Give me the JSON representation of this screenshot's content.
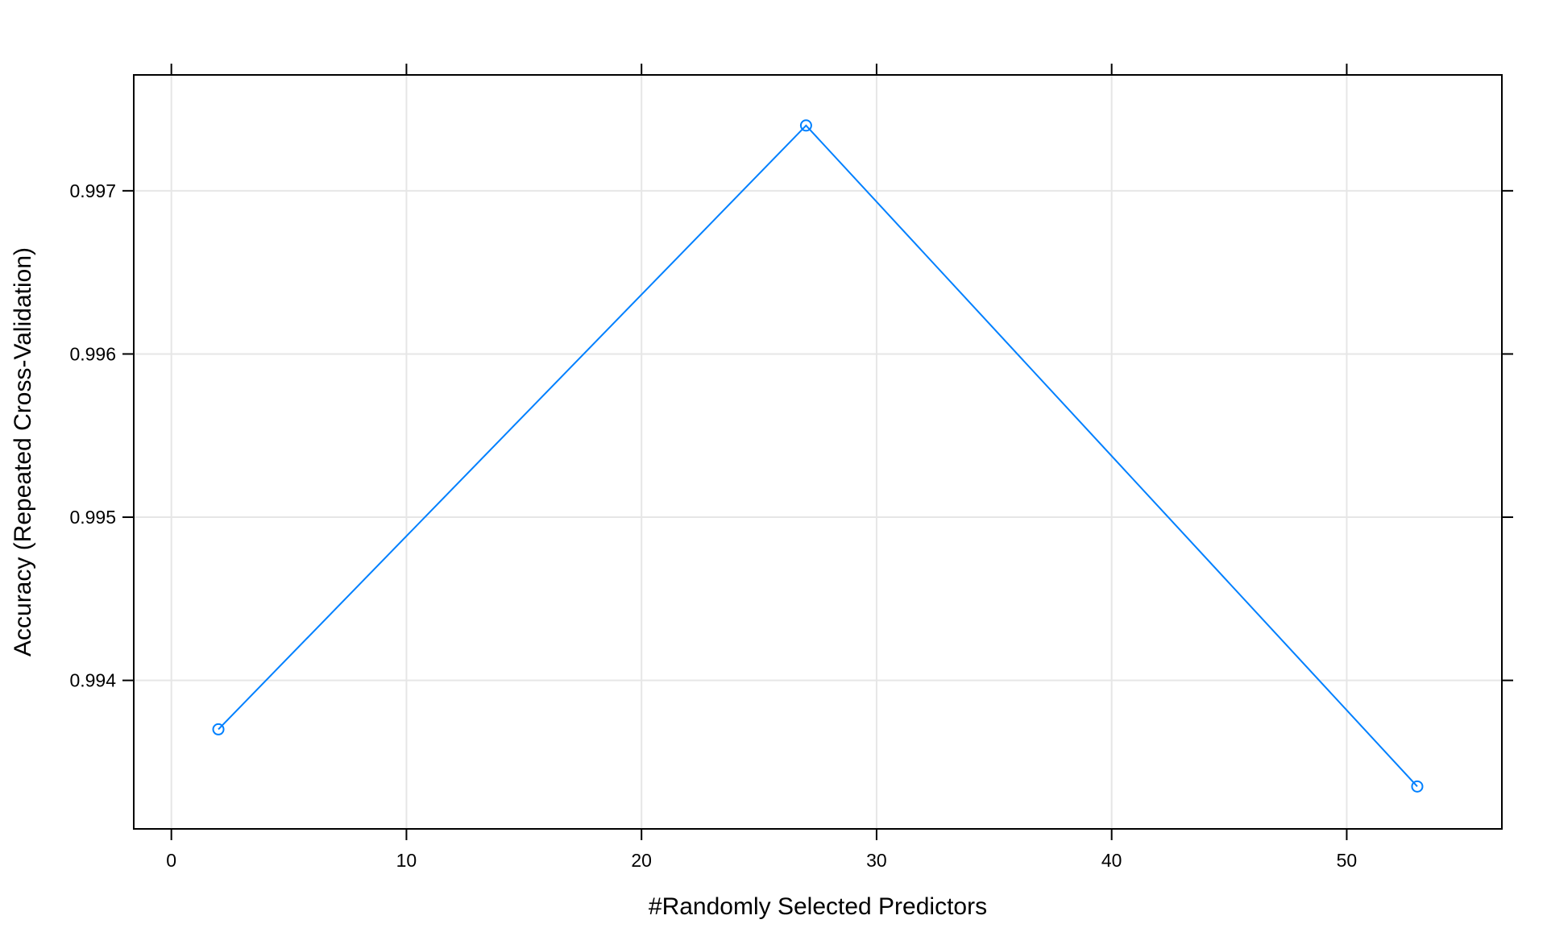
{
  "chart_data": {
    "type": "line",
    "title": "",
    "xlabel": "#Randomly Selected Predictors",
    "ylabel": "Accuracy (Repeated Cross-Validation)",
    "xlim": [
      -1.6,
      56.6
    ],
    "ylim": [
      0.99309,
      0.99771
    ],
    "x_ticks": [
      0,
      10,
      20,
      30,
      40,
      50
    ],
    "y_ticks": [
      0.994,
      0.995,
      0.996,
      0.997
    ],
    "x_tick_labels": [
      "0",
      "10",
      "20",
      "30",
      "40",
      "50"
    ],
    "y_tick_labels": [
      "0.994",
      "0.995",
      "0.996",
      "0.997"
    ],
    "grid": true,
    "series": [
      {
        "x": [
          2,
          27,
          53
        ],
        "y": [
          0.9937,
          0.9974,
          0.99335
        ]
      }
    ],
    "colors": {
      "series": "#0080ff",
      "grid": "#e6e6e6",
      "frame": "#000000"
    }
  }
}
